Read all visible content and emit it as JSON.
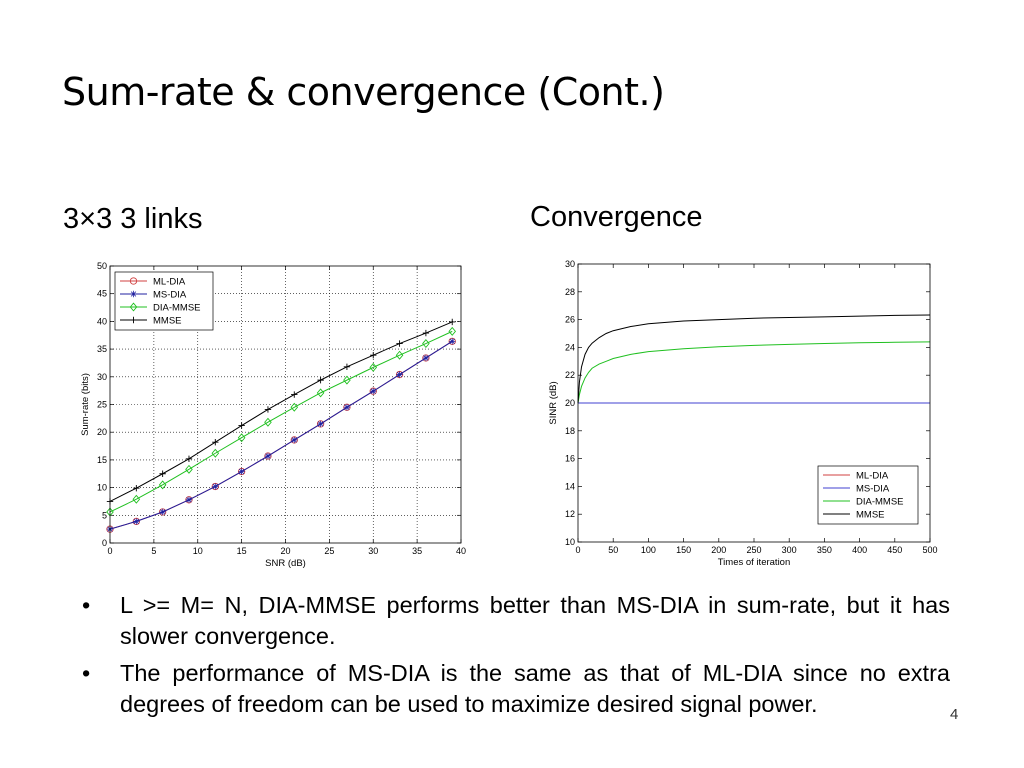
{
  "slide": {
    "title": "Sum-rate & convergence (Cont.)",
    "left_heading": "3×3 3 links",
    "right_heading": "Convergence",
    "page_number": "4",
    "bullets": [
      "L >= M= N, DIA-MMSE performs better than MS-DIA in sum-rate, but it has slower convergence.",
      "The performance of MS-DIA is the same as that of ML-DIA since no extra degrees of freedom can be used to maximize desired signal power."
    ],
    "bullet_glyph": "•"
  },
  "chart_data": [
    {
      "type": "line",
      "xlabel": "SNR (dB)",
      "ylabel": "Sum-rate (bits)",
      "xlim": [
        0,
        40
      ],
      "ylim": [
        0,
        50
      ],
      "xticks": [
        0,
        5,
        10,
        15,
        20,
        25,
        30,
        35,
        40
      ],
      "yticks": [
        0,
        5,
        10,
        15,
        20,
        25,
        30,
        35,
        40,
        45,
        50
      ],
      "grid": "dotted",
      "legend_position": "top-left",
      "x": [
        0,
        3,
        6,
        9,
        12,
        15,
        18,
        21,
        24,
        27,
        30,
        33,
        36,
        39
      ],
      "series": [
        {
          "name": "ML-DIA",
          "color": "#d04040",
          "marker": "circle",
          "values": [
            2.5,
            3.9,
            5.6,
            7.8,
            10.2,
            12.9,
            15.7,
            18.6,
            21.5,
            24.5,
            27.4,
            30.4,
            33.4,
            36.4
          ]
        },
        {
          "name": "MS-DIA",
          "color": "#2020a0",
          "marker": "star",
          "values": [
            2.5,
            3.9,
            5.6,
            7.8,
            10.2,
            12.9,
            15.7,
            18.6,
            21.5,
            24.5,
            27.4,
            30.4,
            33.4,
            36.4
          ]
        },
        {
          "name": "DIA-MMSE",
          "color": "#20c020",
          "marker": "diamond",
          "values": [
            5.6,
            7.9,
            10.5,
            13.3,
            16.2,
            19.0,
            21.8,
            24.5,
            27.1,
            29.4,
            31.7,
            33.9,
            36.0,
            38.2
          ]
        },
        {
          "name": "MMSE",
          "color": "#000000",
          "marker": "plus",
          "values": [
            7.5,
            9.9,
            12.5,
            15.2,
            18.2,
            21.2,
            24.1,
            26.8,
            29.4,
            31.8,
            33.9,
            36.0,
            37.9,
            39.9
          ]
        }
      ]
    },
    {
      "type": "line",
      "xlabel": "Times of iteration",
      "ylabel": "SINR (dB)",
      "xlim": [
        0,
        500
      ],
      "ylim": [
        10,
        30
      ],
      "xticks": [
        0,
        50,
        100,
        150,
        200,
        250,
        300,
        350,
        400,
        450,
        500
      ],
      "yticks": [
        10,
        12,
        14,
        16,
        18,
        20,
        22,
        24,
        26,
        28,
        30
      ],
      "grid": "off",
      "legend_position": "bottom-right",
      "x": [
        0,
        2,
        5,
        10,
        15,
        20,
        30,
        40,
        50,
        75,
        100,
        150,
        200,
        250,
        300,
        350,
        400,
        450,
        500
      ],
      "series": [
        {
          "name": "ML-DIA",
          "color": "#d04040",
          "values": [
            20,
            20,
            20,
            20,
            20,
            20,
            20,
            20,
            20,
            20,
            20,
            20,
            20,
            20,
            20,
            20,
            20,
            20,
            20
          ]
        },
        {
          "name": "MS-DIA",
          "color": "#4040d0",
          "values": [
            20,
            20,
            20,
            20,
            20,
            20,
            20,
            20,
            20,
            20,
            20,
            20,
            20,
            20,
            20,
            20,
            20,
            20,
            20
          ]
        },
        {
          "name": "DIA-MMSE",
          "color": "#20c020",
          "values": [
            20.0,
            20.6,
            21.2,
            21.8,
            22.2,
            22.5,
            22.8,
            23.0,
            23.2,
            23.5,
            23.7,
            23.9,
            24.05,
            24.15,
            24.22,
            24.28,
            24.33,
            24.37,
            24.4
          ]
        },
        {
          "name": "MMSE",
          "color": "#000000",
          "values": [
            20.0,
            21.5,
            22.6,
            23.5,
            24.0,
            24.3,
            24.7,
            25.0,
            25.2,
            25.5,
            25.7,
            25.9,
            26.0,
            26.1,
            26.15,
            26.2,
            26.25,
            26.3,
            26.33
          ]
        }
      ]
    }
  ]
}
